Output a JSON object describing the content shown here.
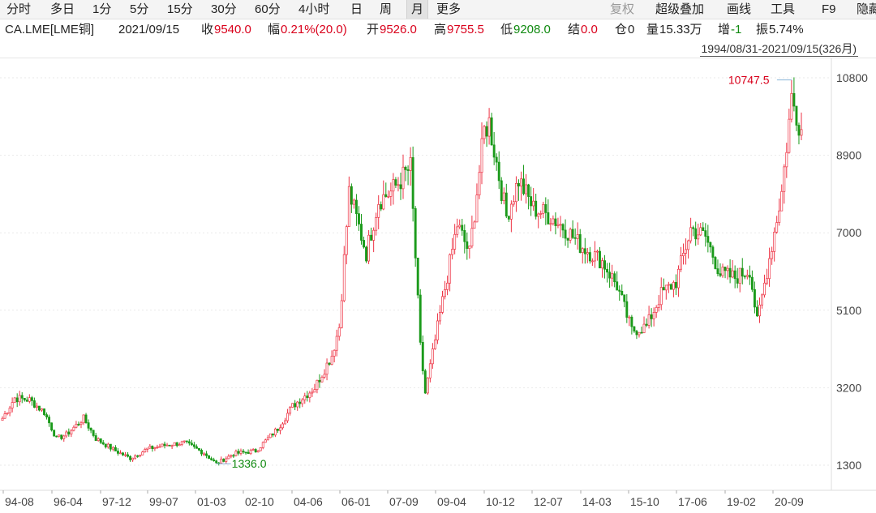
{
  "toolbar": {
    "periods": [
      "分时",
      "多日",
      "1分",
      "5分",
      "15分",
      "30分",
      "60分",
      "4小时",
      "日",
      "周",
      "月",
      "更多"
    ],
    "active_period": "月",
    "right_items": [
      "复权",
      "超级叠加",
      "画线",
      "工具",
      "F9",
      "隐藏"
    ]
  },
  "quote": {
    "symbol": "CA.LME[LME铜]",
    "date": "2021/09/15",
    "close_label": "收",
    "close": "9540.0",
    "change_label": "幅",
    "change": "0.21%(20.0)",
    "open_label": "开",
    "open": "9526.0",
    "high_label": "高",
    "high": "9755.5",
    "low_label": "低",
    "low": "9208.0",
    "settle_label": "结",
    "settle": "0.0",
    "oi_label": "仓",
    "oi": "0",
    "volume_label": "量",
    "volume": "15.33万",
    "oi_change_label": "增",
    "oi_change": "-1",
    "amplitude_label": "振",
    "amplitude": "5.74%"
  },
  "range_label": "1994/08/31-2021/09/15(326月)",
  "colors": {
    "up": "#ee3344",
    "down": "#1a9a1a",
    "accent_red": "#d9001b",
    "accent_green": "#108a10",
    "axis": "#444444"
  },
  "chart_data": {
    "type": "candlestick",
    "xlabel": "",
    "ylabel": "",
    "y_ticks": [
      1300,
      3200,
      5100,
      7000,
      8900,
      10800
    ],
    "ylim": [
      1100,
      10950
    ],
    "x_tick_labels": [
      "94-08",
      "96-04",
      "97-12",
      "99-07",
      "01-03",
      "02-10",
      "04-06",
      "06-01",
      "07-09",
      "09-04",
      "10-12",
      "12-07",
      "14-03",
      "15-10",
      "17-06",
      "19-02",
      "20-09"
    ],
    "period_count": 326,
    "annotations": [
      {
        "label": "10747.5",
        "value": 10747.5,
        "kind": "max"
      },
      {
        "label": "1336.0",
        "value": 1336.0,
        "kind": "min"
      }
    ],
    "close_path": [
      [
        "1994-08",
        2450
      ],
      [
        "1995-01",
        2950
      ],
      [
        "1995-07",
        2900
      ],
      [
        "1996-01",
        2600
      ],
      [
        "1996-06",
        1950
      ],
      [
        "1996-10",
        2050
      ],
      [
        "1997-05",
        2450
      ],
      [
        "1997-10",
        1950
      ],
      [
        "1998-06",
        1650
      ],
      [
        "1998-12",
        1470
      ],
      [
        "1999-07",
        1700
      ],
      [
        "2000-03",
        1800
      ],
      [
        "2000-10",
        1850
      ],
      [
        "2001-06",
        1600
      ],
      [
        "2001-11",
        1336
      ],
      [
        "2002-06",
        1580
      ],
      [
        "2003-03",
        1650
      ],
      [
        "2003-12",
        2200
      ],
      [
        "2004-06",
        2750
      ],
      [
        "2005-03",
        3200
      ],
      [
        "2005-10",
        4000
      ],
      [
        "2006-01",
        4700
      ],
      [
        "2006-05",
        8000
      ],
      [
        "2006-12",
        6500
      ],
      [
        "2007-05",
        7800
      ],
      [
        "2007-10",
        8000
      ],
      [
        "2008-06",
        8600
      ],
      [
        "2008-10",
        4200
      ],
      [
        "2008-12",
        3070
      ],
      [
        "2009-06",
        5000
      ],
      [
        "2010-01",
        7200
      ],
      [
        "2010-06",
        6500
      ],
      [
        "2010-12",
        9500
      ],
      [
        "2011-02",
        9700
      ],
      [
        "2011-09",
        7400
      ],
      [
        "2012-02",
        8300
      ],
      [
        "2012-08",
        7600
      ],
      [
        "2013-03",
        7400
      ],
      [
        "2013-09",
        7100
      ],
      [
        "2014-03",
        6700
      ],
      [
        "2014-12",
        6300
      ],
      [
        "2015-06",
        5700
      ],
      [
        "2015-12",
        4600
      ],
      [
        "2016-06",
        4700
      ],
      [
        "2016-12",
        5500
      ],
      [
        "2017-06",
        5800
      ],
      [
        "2017-12",
        7100
      ],
      [
        "2018-06",
        6900
      ],
      [
        "2018-12",
        6000
      ],
      [
        "2019-06",
        5900
      ],
      [
        "2019-12",
        6100
      ],
      [
        "2020-03",
        4800
      ],
      [
        "2020-09",
        6700
      ],
      [
        "2021-01",
        8000
      ],
      [
        "2021-05",
        10300
      ],
      [
        "2021-09",
        9540
      ]
    ]
  }
}
